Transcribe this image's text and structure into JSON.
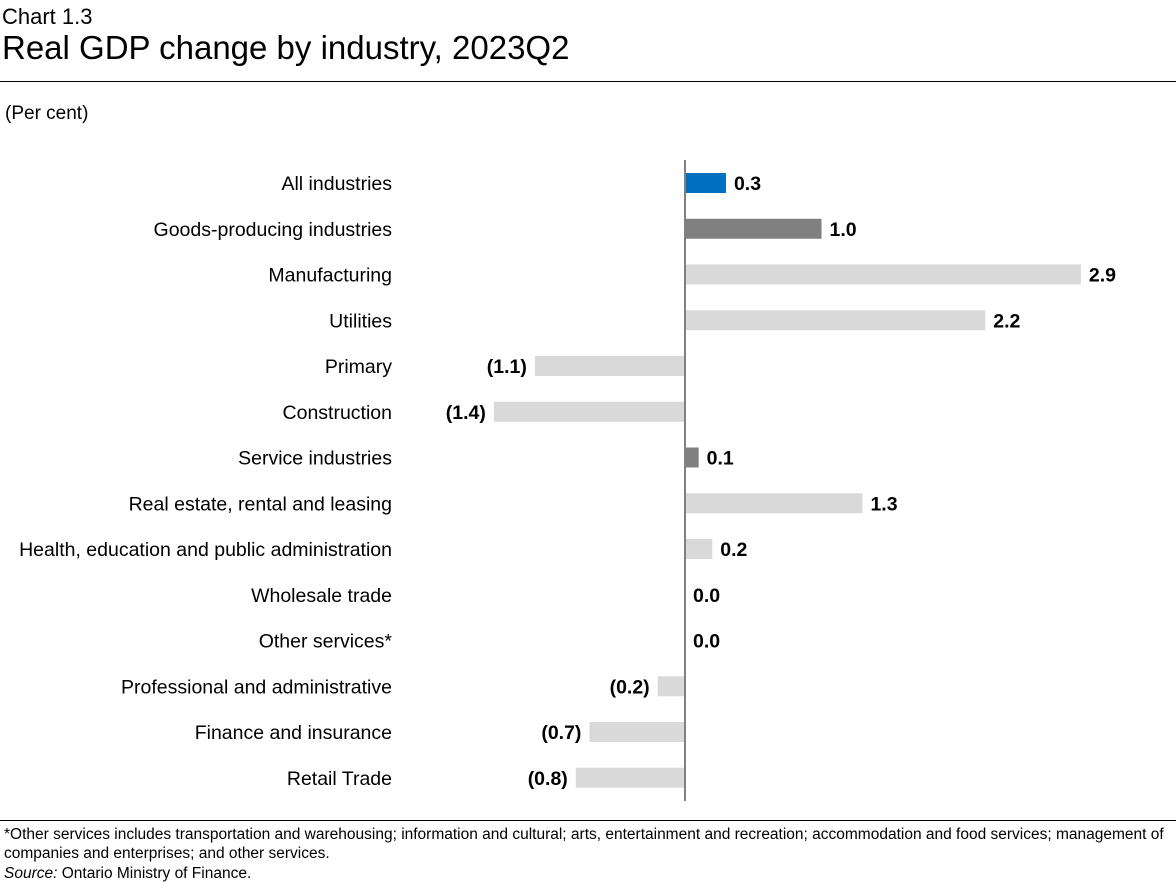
{
  "header": {
    "chart_number": "Chart 1.3",
    "title": "Real GDP change by industry, 2023Q2",
    "unit_label": "(Per cent)"
  },
  "footer": {
    "note": "*Other services includes transportation and warehousing; information and cultural; arts, entertainment and recreation; accommodation and food services; management of companies and enterprises; and other services.",
    "source_label": "Source:",
    "source_text": "Ontario Ministry of Finance."
  },
  "colors": {
    "total": "#0070C0",
    "aggregate": "#808080",
    "detail": "#D9D9D9",
    "axis": "#808080"
  },
  "chart_data": {
    "type": "bar",
    "orientation": "horizontal",
    "title": "Real GDP change by industry, 2023Q2",
    "ylabel": "(Per cent)",
    "categories": [
      "All industries",
      "Goods-producing industries",
      "Manufacturing",
      "Utilities",
      "Primary",
      "Construction",
      "Service industries",
      "Real estate, rental and leasing",
      "Health, education and public administration",
      "Wholesale trade",
      "Other services*",
      "Professional and administrative",
      "Finance and insurance",
      "Retail Trade"
    ],
    "values": [
      0.3,
      1.0,
      2.9,
      2.2,
      -1.1,
      -1.4,
      0.1,
      1.3,
      0.2,
      0.0,
      0.0,
      -0.2,
      -0.7,
      -0.8
    ],
    "labels": [
      "0.3",
      "1.0",
      "2.9",
      "2.2",
      "(1.1)",
      "(1.4)",
      "0.1",
      "1.3",
      "0.2",
      "0.0",
      "0.0",
      "(0.2)",
      "(0.7)",
      "(0.8)"
    ],
    "bar_kinds": [
      "total",
      "aggregate",
      "detail",
      "detail",
      "detail",
      "detail",
      "aggregate",
      "detail",
      "detail",
      "detail",
      "detail",
      "detail",
      "detail",
      "detail"
    ],
    "xlim": [
      -1.5,
      3.2
    ],
    "grid": false,
    "legend": "none"
  }
}
